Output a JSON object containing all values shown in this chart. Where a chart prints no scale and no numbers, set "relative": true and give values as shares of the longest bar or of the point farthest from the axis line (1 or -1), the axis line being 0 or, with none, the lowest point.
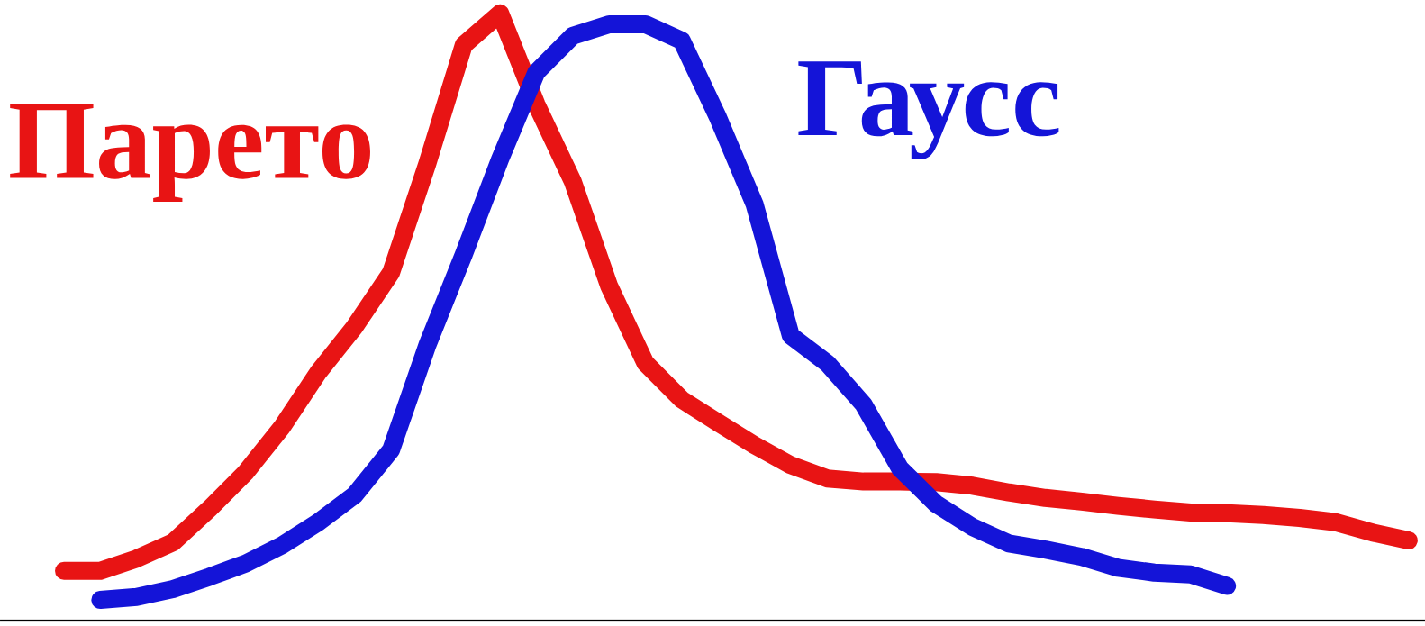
{
  "chart_data": {
    "type": "line",
    "relative": true,
    "tick_labels": false,
    "line_style": "solid",
    "marker": "none",
    "categories": [
      null,
      null,
      null,
      null,
      null,
      null,
      null,
      null,
      null,
      null,
      null,
      null,
      null,
      null,
      null,
      null,
      null,
      null,
      null,
      null,
      null,
      null,
      null,
      null,
      null,
      null,
      null,
      null,
      null,
      null,
      null,
      null,
      null,
      null,
      null,
      null,
      null,
      null
    ],
    "series": [
      {
        "name": "Парето",
        "color": "#e81414",
        "values": [
          0.082,
          0.082,
          0.102,
          0.129,
          0.184,
          0.244,
          0.319,
          0.409,
          0.484,
          0.573,
          0.753,
          0.948,
          1.0,
          0.85,
          0.723,
          0.551,
          0.424,
          0.364,
          0.326,
          0.289,
          0.256,
          0.234,
          0.229,
          0.229,
          0.228,
          0.222,
          0.211,
          0.202,
          0.196,
          0.189,
          0.183,
          0.178,
          0.177,
          0.174,
          0.169,
          0.162,
          0.145,
          0.132
        ]
      },
      {
        "name": "Гаусс",
        "color": "#1414d8",
        "values": [
          null,
          0.034,
          0.039,
          0.052,
          0.072,
          0.094,
          0.124,
          0.162,
          0.207,
          0.281,
          0.454,
          0.603,
          0.76,
          0.903,
          0.963,
          0.982,
          0.982,
          0.955,
          0.828,
          0.686,
          0.469,
          0.424,
          0.356,
          0.251,
          0.192,
          0.154,
          0.127,
          0.117,
          0.105,
          0.087,
          0.079,
          0.076,
          0.057,
          null,
          null,
          null,
          null,
          null
        ]
      }
    ]
  }
}
